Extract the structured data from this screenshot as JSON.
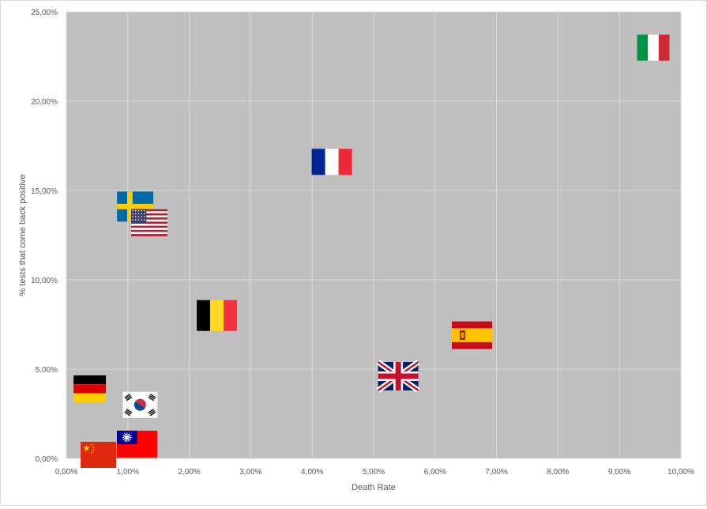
{
  "chart_data": {
    "type": "scatter",
    "xlabel": "Death Rate",
    "ylabel": "% tests that come back positive",
    "xlim": [
      0,
      0.1
    ],
    "ylim": [
      0,
      0.25
    ],
    "x_ticks": [
      "0,00%",
      "1,00%",
      "2,00%",
      "3,00%",
      "4,00%",
      "5,00%",
      "6,00%",
      "7,00%",
      "8,00%",
      "9,00%",
      "10,00%"
    ],
    "y_ticks": [
      "0,00%",
      "5,00%",
      "10,00%",
      "15,00%",
      "20,00%",
      "25,00%"
    ],
    "grid": true,
    "plot_background": "#bfbfbf",
    "gridline_color": "#d9d9d9",
    "marker": "country-flag",
    "points": [
      {
        "flag": "italy-flag",
        "x": 0.0955,
        "y": 0.23
      },
      {
        "flag": "france-flag",
        "x": 0.0432,
        "y": 0.166
      },
      {
        "flag": "sweden-flag",
        "x": 0.0112,
        "y": 0.141
      },
      {
        "flag": "usa-flag",
        "x": 0.0135,
        "y": 0.132
      },
      {
        "flag": "belgium-flag",
        "x": 0.0245,
        "y": 0.08
      },
      {
        "flag": "spain-flag",
        "x": 0.066,
        "y": 0.069
      },
      {
        "flag": "uk-flag",
        "x": 0.054,
        "y": 0.046
      },
      {
        "flag": "germany-flag",
        "x": 0.0038,
        "y": 0.039
      },
      {
        "flag": "south-korea-flag",
        "x": 0.012,
        "y": 0.03
      },
      {
        "flag": "taiwan-flag",
        "x": 0.0115,
        "y": 0.008
      },
      {
        "flag": "china-flag",
        "x": 0.0052,
        "y": 0.002
      }
    ]
  }
}
